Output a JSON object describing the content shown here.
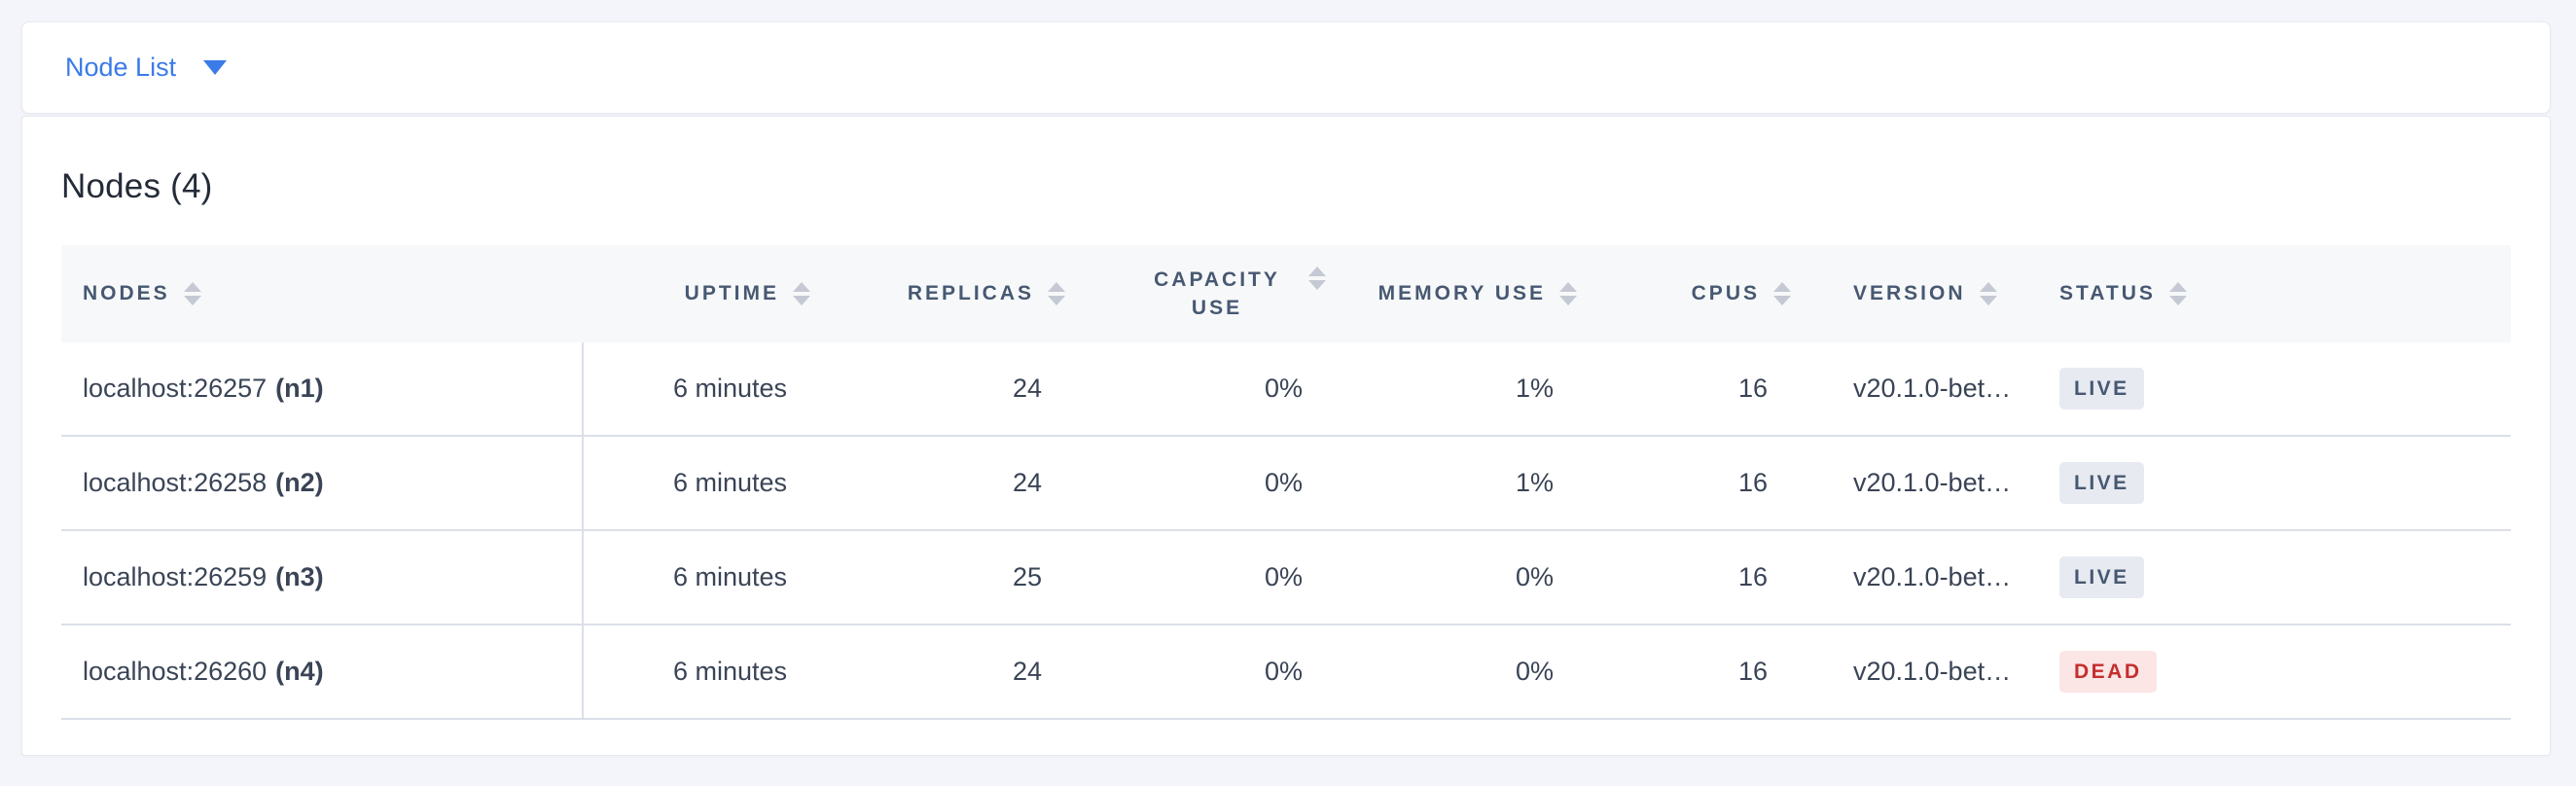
{
  "colors": {
    "page_bg": "#f4f5fa",
    "card_bg": "#ffffff",
    "card_border": "#e7e9f0",
    "accent_blue": "#3b7be8",
    "header_bg": "#f7f8f9",
    "header_text": "#475872",
    "body_text": "#3a4456",
    "title_text": "#242b38",
    "row_border": "#dcdfe9",
    "sort_icon": "#c5c9d4",
    "live_bg": "#e7eaf0",
    "live_text": "#475872",
    "dead_bg": "#fce5e5",
    "dead_text": "#c42e2e"
  },
  "toolbar": {
    "dropdown_label": "Node List",
    "caret_icon": "caret-down-icon"
  },
  "main": {
    "title": "Nodes (4)",
    "table": {
      "columns": [
        {
          "key": "nodes",
          "label": "NODES",
          "align": "left"
        },
        {
          "key": "uptime",
          "label": "UPTIME",
          "align": "right"
        },
        {
          "key": "replicas",
          "label": "REPLICAS",
          "align": "right"
        },
        {
          "key": "capacity_use",
          "label": "CAPACITY USE",
          "align": "right",
          "wrap": true
        },
        {
          "key": "memory_use",
          "label": "MEMORY USE",
          "align": "right"
        },
        {
          "key": "cpus",
          "label": "CPUS",
          "align": "right"
        },
        {
          "key": "version",
          "label": "VERSION",
          "align": "left"
        },
        {
          "key": "status",
          "label": "STATUS",
          "align": "left"
        }
      ],
      "rows": [
        {
          "address": "localhost:26257",
          "node_id": "(n1)",
          "uptime": "6 minutes",
          "replicas": "24",
          "capacity_use": "0%",
          "memory_use": "1%",
          "cpus": "16",
          "version": "v20.1.0-bet…",
          "status": "LIVE"
        },
        {
          "address": "localhost:26258",
          "node_id": "(n2)",
          "uptime": "6 minutes",
          "replicas": "24",
          "capacity_use": "0%",
          "memory_use": "1%",
          "cpus": "16",
          "version": "v20.1.0-bet…",
          "status": "LIVE"
        },
        {
          "address": "localhost:26259",
          "node_id": "(n3)",
          "uptime": "6 minutes",
          "replicas": "25",
          "capacity_use": "0%",
          "memory_use": "0%",
          "cpus": "16",
          "version": "v20.1.0-bet…",
          "status": "LIVE"
        },
        {
          "address": "localhost:26260",
          "node_id": "(n4)",
          "uptime": "6 minutes",
          "replicas": "24",
          "capacity_use": "0%",
          "memory_use": "0%",
          "cpus": "16",
          "version": "v20.1.0-bet…",
          "status": "DEAD"
        }
      ]
    }
  }
}
